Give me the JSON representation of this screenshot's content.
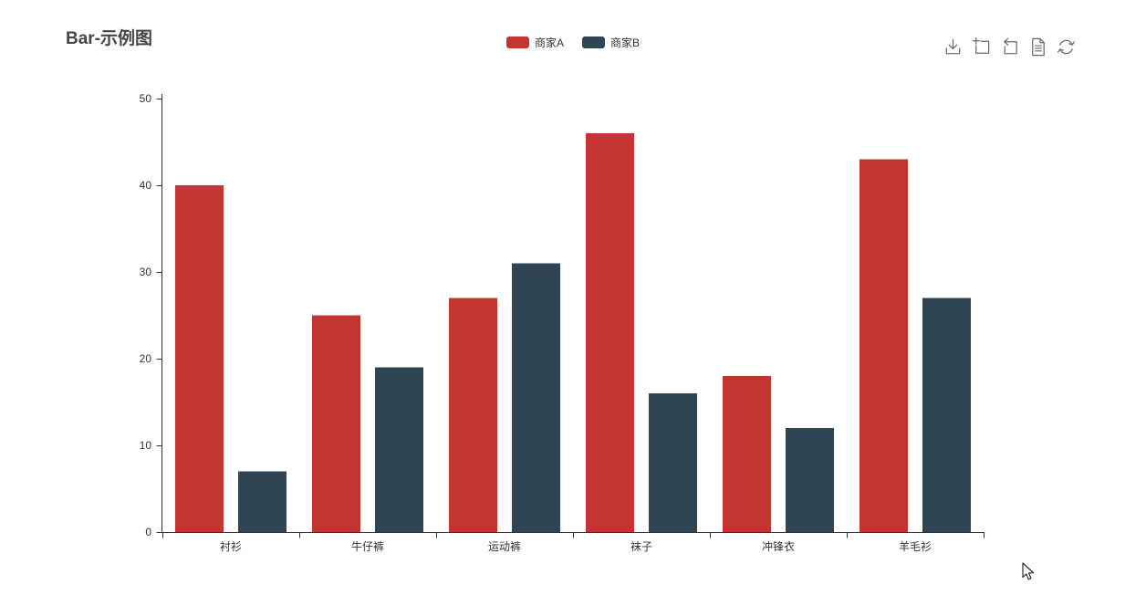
{
  "header": {
    "title": "Bar-示例图"
  },
  "legend": {
    "items": [
      {
        "label": "商家A",
        "color": "#c23531"
      },
      {
        "label": "商家B",
        "color": "#2f4554"
      }
    ]
  },
  "toolbar": {
    "icons": [
      "download-icon",
      "data-zoom-icon",
      "zoom-restore-icon",
      "data-view-icon",
      "refresh-icon"
    ]
  },
  "chart_data": {
    "type": "bar",
    "title": "Bar-示例图",
    "categories": [
      "衬衫",
      "牛仔裤",
      "运动裤",
      "袜子",
      "冲锋衣",
      "羊毛衫"
    ],
    "series": [
      {
        "name": "商家A",
        "color": "#c23531",
        "values": [
          40,
          25,
          27,
          46,
          18,
          43
        ]
      },
      {
        "name": "商家B",
        "color": "#2f4554",
        "values": [
          7,
          19,
          31,
          16,
          12,
          27
        ]
      }
    ],
    "xlabel": "",
    "ylabel": "",
    "ylim": [
      0,
      50
    ],
    "yticks": [
      0,
      10,
      20,
      30,
      40,
      50
    ],
    "grid": false,
    "legend_position": "top-center",
    "axis_color": "#333333",
    "label_color": "#333333"
  },
  "cursor": {
    "visible": true
  }
}
